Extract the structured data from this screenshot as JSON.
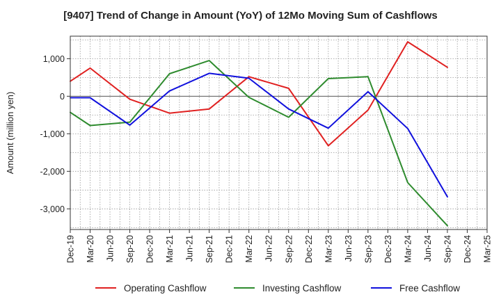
{
  "chart_data": {
    "type": "line",
    "title": "[9407]  Trend of Change in Amount (YoY) of 12Mo Moving Sum of Cashflows",
    "xlabel": "",
    "ylabel": "Amount (million yen)",
    "ylim": [
      -3550,
      1600
    ],
    "yticks": [
      1000,
      0,
      -1000,
      -2000,
      -3000
    ],
    "ytick_labels": [
      "1,000",
      "0",
      "-1,000",
      "-2,000",
      "-3,000"
    ],
    "categories": [
      "Dec-19",
      "Mar-20",
      "Jun-20",
      "Sep-20",
      "Dec-20",
      "Mar-21",
      "Jun-21",
      "Sep-21",
      "Dec-21",
      "Mar-22",
      "Jun-22",
      "Sep-22",
      "Dec-22",
      "Mar-23",
      "Jun-23",
      "Sep-23",
      "Dec-23",
      "Mar-24",
      "Jun-24",
      "Sep-24",
      "Dec-24",
      "Mar-25"
    ],
    "series": [
      {
        "name": "Operating Cashflow",
        "color": "#e02020",
        "values": [
          400,
          750,
          null,
          -80,
          null,
          -450,
          null,
          -340,
          null,
          520,
          null,
          210,
          null,
          -1320,
          null,
          -370,
          null,
          1450,
          null,
          770,
          null,
          null
        ]
      },
      {
        "name": "Investing Cashflow",
        "color": "#2e8b2e",
        "values": [
          -430,
          -780,
          null,
          -690,
          null,
          600,
          null,
          950,
          null,
          -30,
          null,
          -560,
          null,
          470,
          null,
          520,
          null,
          -2300,
          null,
          -3450,
          null,
          null
        ]
      },
      {
        "name": "Free Cashflow",
        "color": "#1010dd",
        "values": [
          -40,
          -40,
          null,
          -770,
          null,
          140,
          null,
          610,
          null,
          480,
          null,
          -340,
          null,
          -850,
          null,
          120,
          null,
          -860,
          null,
          -2680,
          null,
          null
        ]
      }
    ],
    "grid": true,
    "legend_position": "bottom"
  }
}
